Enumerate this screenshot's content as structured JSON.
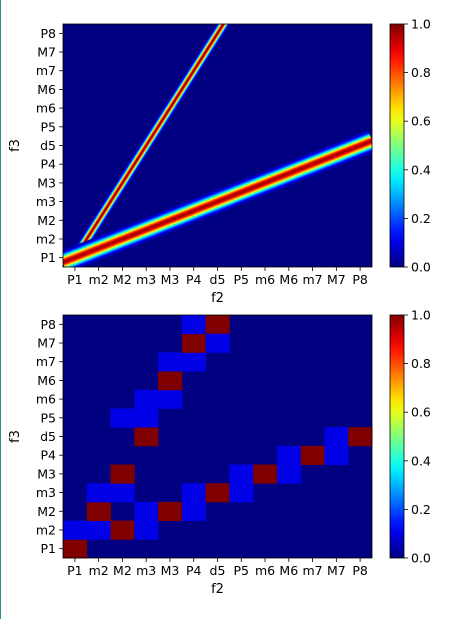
{
  "chart_data": [
    {
      "type": "heatmap",
      "title": "",
      "xlabel": "f2",
      "ylabel": "f3",
      "categories_x": [
        "P1",
        "m2",
        "M2",
        "m3",
        "M3",
        "P4",
        "d5",
        "P5",
        "m6",
        "M6",
        "m7",
        "M7",
        "P8"
      ],
      "categories_y": [
        "P1",
        "m2",
        "M2",
        "m3",
        "M3",
        "P4",
        "d5",
        "P5",
        "m6",
        "M6",
        "m7",
        "M7",
        "P8"
      ],
      "colormap": "jet",
      "clim": [
        0,
        1
      ],
      "colorbar_ticks": [
        "0.0",
        "0.2",
        "0.4",
        "0.6",
        "0.8",
        "1.0"
      ],
      "rendering": "continuous",
      "ridges": [
        {
          "description": "ratio",
          "slope": 2.0,
          "intercept": 0,
          "peak": 1.0
        },
        {
          "description": "ratio",
          "slope": 0.5,
          "intercept": 0,
          "peak": 1.0
        }
      ],
      "ridge_width": 0.28
    },
    {
      "type": "heatmap",
      "title": "",
      "xlabel": "f2",
      "ylabel": "f3",
      "categories_x": [
        "P1",
        "m2",
        "M2",
        "m3",
        "M3",
        "P4",
        "d5",
        "P5",
        "m6",
        "M6",
        "m7",
        "M7",
        "P8"
      ],
      "categories_y": [
        "P1",
        "m2",
        "M2",
        "m3",
        "M3",
        "P4",
        "d5",
        "P5",
        "m6",
        "M6",
        "m7",
        "M7",
        "P8"
      ],
      "colormap": "jet",
      "clim": [
        0,
        1
      ],
      "colorbar_ticks": [
        "0.0",
        "0.2",
        "0.4",
        "0.6",
        "0.8",
        "1.0"
      ],
      "rendering": "discrete",
      "cells": [
        {
          "x": 0,
          "y": 0,
          "v": 1.0
        },
        {
          "x": 0,
          "y": 1,
          "v": 0.1
        },
        {
          "x": 1,
          "y": 1,
          "v": 0.1
        },
        {
          "x": 1,
          "y": 2,
          "v": 1.0
        },
        {
          "x": 1,
          "y": 3,
          "v": 0.1
        },
        {
          "x": 2,
          "y": 1,
          "v": 1.0
        },
        {
          "x": 2,
          "y": 3,
          "v": 0.1
        },
        {
          "x": 2,
          "y": 4,
          "v": 1.0
        },
        {
          "x": 2,
          "y": 7,
          "v": 0.1
        },
        {
          "x": 3,
          "y": 1,
          "v": 0.1
        },
        {
          "x": 3,
          "y": 2,
          "v": 0.1
        },
        {
          "x": 3,
          "y": 6,
          "v": 1.0
        },
        {
          "x": 3,
          "y": 7,
          "v": 0.1
        },
        {
          "x": 3,
          "y": 8,
          "v": 0.1
        },
        {
          "x": 4,
          "y": 2,
          "v": 1.0
        },
        {
          "x": 4,
          "y": 8,
          "v": 0.1
        },
        {
          "x": 4,
          "y": 9,
          "v": 1.0
        },
        {
          "x": 4,
          "y": 10,
          "v": 0.1
        },
        {
          "x": 5,
          "y": 2,
          "v": 0.1
        },
        {
          "x": 5,
          "y": 3,
          "v": 0.1
        },
        {
          "x": 5,
          "y": 10,
          "v": 0.1
        },
        {
          "x": 5,
          "y": 11,
          "v": 1.0
        },
        {
          "x": 5,
          "y": 12,
          "v": 0.1
        },
        {
          "x": 6,
          "y": 3,
          "v": 1.0
        },
        {
          "x": 6,
          "y": 12,
          "v": 1.0
        },
        {
          "x": 6,
          "y": 11,
          "v": 0.1
        },
        {
          "x": 7,
          "y": 3,
          "v": 0.1
        },
        {
          "x": 7,
          "y": 4,
          "v": 0.1
        },
        {
          "x": 8,
          "y": 4,
          "v": 1.0
        },
        {
          "x": 9,
          "y": 4,
          "v": 0.1
        },
        {
          "x": 9,
          "y": 5,
          "v": 0.1
        },
        {
          "x": 10,
          "y": 5,
          "v": 1.0
        },
        {
          "x": 11,
          "y": 5,
          "v": 0.1
        },
        {
          "x": 11,
          "y": 6,
          "v": 0.1
        },
        {
          "x": 12,
          "y": 6,
          "v": 1.0
        }
      ]
    }
  ]
}
